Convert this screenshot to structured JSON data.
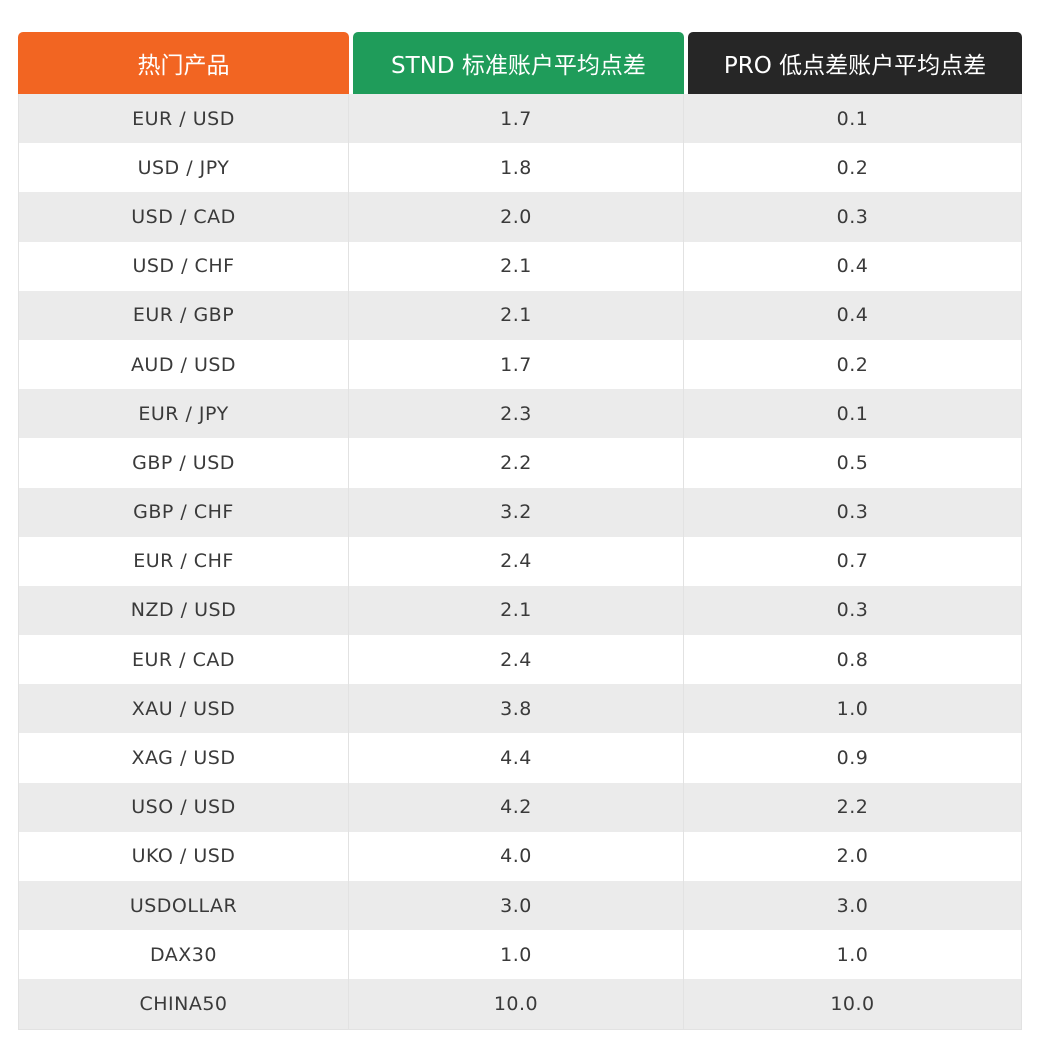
{
  "colors": {
    "col1_header_bg": "#f26522",
    "col2_header_bg": "#1f9c5a",
    "col3_header_bg": "#262626"
  },
  "table": {
    "headers": [
      "热门产品",
      "STND 标准账户平均点差",
      "PRO 低点差账户平均点差"
    ],
    "rows": [
      [
        "EUR / USD",
        "1.7",
        "0.1"
      ],
      [
        "USD / JPY",
        "1.8",
        "0.2"
      ],
      [
        "USD / CAD",
        "2.0",
        "0.3"
      ],
      [
        "USD / CHF",
        "2.1",
        "0.4"
      ],
      [
        "EUR / GBP",
        "2.1",
        "0.4"
      ],
      [
        "AUD / USD",
        "1.7",
        "0.2"
      ],
      [
        "EUR / JPY",
        "2.3",
        "0.1"
      ],
      [
        "GBP / USD",
        "2.2",
        "0.5"
      ],
      [
        "GBP / CHF",
        "3.2",
        "0.3"
      ],
      [
        "EUR / CHF",
        "2.4",
        "0.7"
      ],
      [
        "NZD / USD",
        "2.1",
        "0.3"
      ],
      [
        "EUR / CAD",
        "2.4",
        "0.8"
      ],
      [
        "XAU / USD",
        "3.8",
        "1.0"
      ],
      [
        "XAG / USD",
        "4.4",
        "0.9"
      ],
      [
        "USO / USD",
        "4.2",
        "2.2"
      ],
      [
        "UKO / USD",
        "4.0",
        "2.0"
      ],
      [
        "USDOLLAR",
        "3.0",
        "3.0"
      ],
      [
        "DAX30",
        "1.0",
        "1.0"
      ],
      [
        "CHINA50",
        "10.0",
        "10.0"
      ]
    ]
  }
}
